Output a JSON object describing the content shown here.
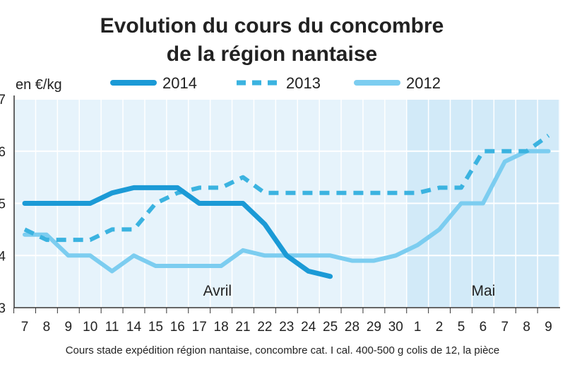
{
  "chart_data": {
    "type": "line",
    "title_line1": "Evolution du cours du concombre",
    "title_line2": "de la région nantaise",
    "ylabel": "en €/kg",
    "source_note": "Cours stade expédition région nantaise, concombre cat. I cal. 400-500 g colis de 12, la pièce",
    "months": [
      "Avril",
      "Mai"
    ],
    "ylim": [
      3,
      7
    ],
    "yticks": [
      "3",
      "4",
      "5",
      "6",
      "7"
    ],
    "categories": [
      "7",
      "8",
      "9",
      "10",
      "11",
      "14",
      "15",
      "16",
      "17",
      "18",
      "21",
      "22",
      "23",
      "24",
      "25",
      "28",
      "29",
      "30",
      "1",
      "2",
      "5",
      "6",
      "7",
      "8",
      "9"
    ],
    "series": [
      {
        "name": "2014",
        "style": "solid-thick",
        "color": "#1b9ad6",
        "values": [
          5.0,
          5.0,
          5.0,
          5.0,
          5.2,
          5.3,
          5.3,
          5.3,
          5.0,
          5.0,
          5.0,
          4.6,
          4.0,
          3.7,
          3.6,
          null,
          null,
          null,
          null,
          null,
          null,
          null,
          null,
          null,
          null
        ]
      },
      {
        "name": "2013",
        "style": "dashed",
        "color": "#3bb3e0",
        "values": [
          4.5,
          4.3,
          4.3,
          4.3,
          4.5,
          4.5,
          5.0,
          5.2,
          5.3,
          5.3,
          5.5,
          5.2,
          5.2,
          5.2,
          5.2,
          5.2,
          5.2,
          5.2,
          5.2,
          5.3,
          5.3,
          6.0,
          6.0,
          6.0,
          6.3
        ]
      },
      {
        "name": "2012",
        "style": "solid-light",
        "color": "#7ccdf0",
        "values": [
          4.4,
          4.4,
          4.0,
          4.0,
          3.7,
          4.0,
          3.8,
          3.8,
          3.8,
          3.8,
          4.1,
          4.0,
          4.0,
          4.0,
          4.0,
          3.9,
          3.9,
          4.0,
          4.2,
          4.5,
          5.0,
          5.0,
          5.8,
          6.0,
          6.0
        ]
      }
    ],
    "colors": {
      "panel_april": "#e6f3fb",
      "panel_may": "#d2eaf8",
      "grid": "#ffffff",
      "axis": "#333333"
    }
  }
}
